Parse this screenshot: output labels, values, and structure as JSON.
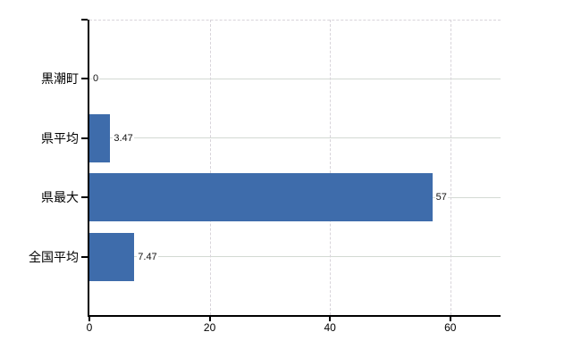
{
  "chart_data": {
    "type": "bar",
    "orientation": "horizontal",
    "title": "",
    "categories": [
      "黒潮町",
      "県平均",
      "県最大",
      "全国平均"
    ],
    "values": [
      0,
      3.47,
      57,
      7.47
    ],
    "value_labels": [
      "0",
      "3.47",
      "57",
      "7.47"
    ],
    "x_ticks": [
      0,
      20,
      40,
      60
    ],
    "x_tick_labels": [
      "0",
      "20",
      "40",
      "60"
    ],
    "xlim": [
      0,
      68.4
    ],
    "grid": true,
    "legend": false,
    "colors": {
      "bar": "#3e6cab",
      "axis": "#000000",
      "h_grid": "#d3d9d3",
      "v_grid": "#d8d4da",
      "label": "#000000",
      "value_label": "#111111",
      "background": "#ffffff"
    }
  }
}
